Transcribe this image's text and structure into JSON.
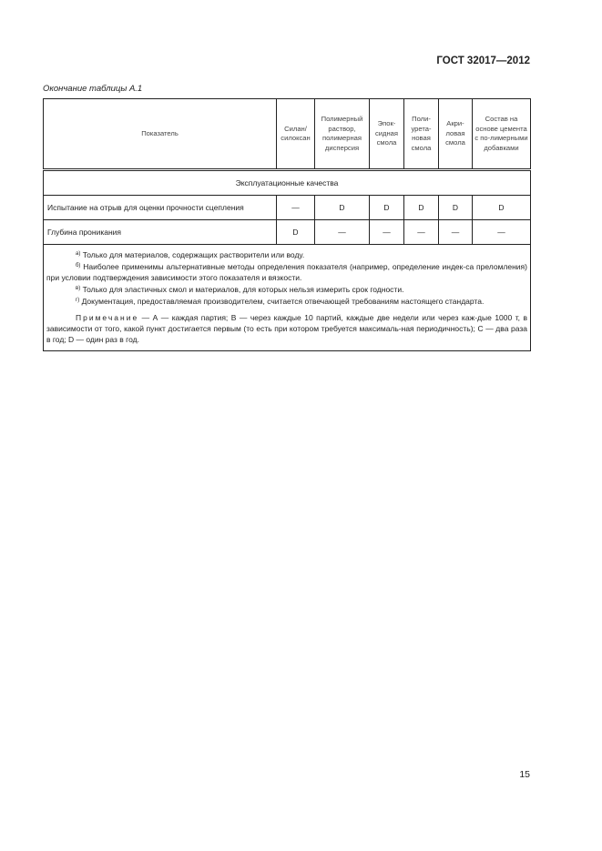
{
  "header": {
    "standard": "ГОСТ 32017—2012"
  },
  "caption": "Окончание таблицы А.1",
  "table": {
    "columns": [
      "Показатель",
      "Силан/ силоксан",
      "Полимерный раствор, полимерная дисперсия",
      "Эпок-сидная смола",
      "Поли-урета-новая смола",
      "Акри-ловая смола",
      "Состав на основе цемента с по-лимерными добавками"
    ],
    "section": "Эксплуатационные качества",
    "rows": [
      [
        "Испытание на отрыв для оценки прочности сцепления",
        "—",
        "D",
        "D",
        "D",
        "D",
        "D"
      ],
      [
        "Глубина проникания",
        "D",
        "—",
        "—",
        "—",
        "—",
        "—"
      ]
    ]
  },
  "footnotes": [
    {
      "mark": "а)",
      "text": "Только для материалов, содержащих растворители или воду."
    },
    {
      "mark": "б)",
      "text": "Наиболее применимы альтернативные методы определения показателя (например, определение индек-са преломления) при условии подтверждения зависимости этого показателя и вязкости."
    },
    {
      "mark": "в)",
      "text": "Только для эластичных смол и материалов, для которых нельзя измерить срок годности."
    },
    {
      "mark": "г)",
      "text": "Документация, предоставляемая производителем, считается отвечающей требованиям настоящего стандарта."
    }
  ],
  "note": {
    "label": "Примечание",
    "text": " — А — каждая партия; В — через каждые 10 партий, каждые две недели или через каж-дые 1000 т, в зависимости от того, какой пункт достигается первым (то есть при котором требуется максималь-ная периодичность); С — два раза в год; D — один раз в год."
  },
  "page_number": "15"
}
